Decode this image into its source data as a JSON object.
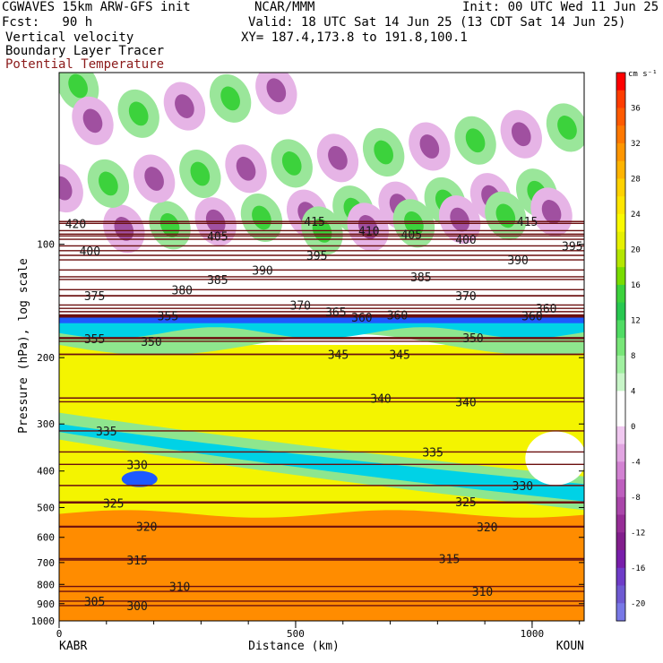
{
  "header": {
    "model": "CGWAVES 15km ARW-GFS init",
    "org": "NCAR/MMM",
    "init": "Init: 00 UTC Wed 11 Jun 25",
    "fcst": "Fcst:   90 h",
    "valid": "Valid: 18 UTC Sat 14 Jun 25 (13 CDT Sat 14 Jun 25)",
    "field1": "Vertical velocity",
    "xy": "XY= 187.4,173.8 to 191.8,100.1",
    "field2": "Boundary Layer Tracer",
    "field3": "Potential Temperature"
  },
  "colors": {
    "theta_line": "#6b0f0f",
    "blt_fill_yellow": "#f4f400",
    "blt_fill_orange": "#ff8c00",
    "blt_fill_green": "#8ee68e",
    "blt_fill_cyan": "#00d2e6",
    "blt_fill_blue": "#1e5aff"
  },
  "chart_data": {
    "type": "cross-section",
    "xlabel": "Distance (km)",
    "ylabel": "Pressure (hPa), log scale",
    "x_ticks": [
      "0",
      "500",
      "1000"
    ],
    "x_tick_values": [
      0,
      500,
      1000
    ],
    "xlim": [
      0,
      1110
    ],
    "endpoints": {
      "left": "KABR",
      "right": "KOUN"
    },
    "y_ticks": [
      "100",
      "200",
      "300",
      "400",
      "500",
      "600",
      "700",
      "800",
      "900",
      "1000"
    ],
    "y_tick_values": [
      100,
      200,
      300,
      400,
      500,
      600,
      700,
      800,
      900,
      1000
    ],
    "ylim_hpa": [
      1000,
      35
    ],
    "y_scale": "log",
    "colorbar": {
      "units": "cm s⁻¹",
      "labels": [
        "36",
        "32",
        "28",
        "24",
        "20",
        "16",
        "12",
        "8",
        "4",
        "0",
        "-4",
        "-8",
        "-12",
        "-16",
        "-20"
      ],
      "colors": [
        "#ff0000",
        "#ff3c00",
        "#ff5a00",
        "#ff7800",
        "#ff9600",
        "#ffb400",
        "#ffd200",
        "#ffe600",
        "#fafa00",
        "#e6f000",
        "#b4e600",
        "#78dc00",
        "#3cd23c",
        "#28c850",
        "#50dc64",
        "#78e678",
        "#a0f0a0",
        "#c8f5c8",
        "#ffffff",
        "#ffffff",
        "#f0c8f0",
        "#e1a5e1",
        "#d282d2",
        "#be5fbe",
        "#aa46aa",
        "#962d96",
        "#821e8c",
        "#781eaa",
        "#6e3cc8",
        "#6e5ad2",
        "#7878e6"
      ]
    },
    "theta_contours": {
      "units": "K",
      "labels": [
        {
          "v": "420",
          "x": 35,
          "p": 88
        },
        {
          "v": "415",
          "x": 540,
          "p": 87
        },
        {
          "v": "415",
          "x": 990,
          "p": 87
        },
        {
          "v": "400",
          "x": 65,
          "p": 104
        },
        {
          "v": "405",
          "x": 335,
          "p": 95
        },
        {
          "v": "410",
          "x": 655,
          "p": 92
        },
        {
          "v": "405",
          "x": 745,
          "p": 94
        },
        {
          "v": "400",
          "x": 860,
          "p": 97
        },
        {
          "v": "395",
          "x": 1085,
          "p": 101
        },
        {
          "v": "395",
          "x": 545,
          "p": 107
        },
        {
          "v": "390",
          "x": 430,
          "p": 117
        },
        {
          "v": "390",
          "x": 970,
          "p": 110
        },
        {
          "v": "385",
          "x": 335,
          "p": 124
        },
        {
          "v": "385",
          "x": 765,
          "p": 122
        },
        {
          "v": "380",
          "x": 260,
          "p": 132
        },
        {
          "v": "375",
          "x": 75,
          "p": 137
        },
        {
          "v": "370",
          "x": 510,
          "p": 145
        },
        {
          "v": "370",
          "x": 860,
          "p": 137
        },
        {
          "v": "365",
          "x": 585,
          "p": 151
        },
        {
          "v": "360",
          "x": 640,
          "p": 156
        },
        {
          "v": "360",
          "x": 715,
          "p": 154
        },
        {
          "v": "360",
          "x": 1000,
          "p": 155
        },
        {
          "v": "360",
          "x": 1030,
          "p": 148
        },
        {
          "v": "355",
          "x": 230,
          "p": 155
        },
        {
          "v": "355",
          "x": 75,
          "p": 178
        },
        {
          "v": "350",
          "x": 195,
          "p": 181
        },
        {
          "v": "350",
          "x": 875,
          "p": 177
        },
        {
          "v": "345",
          "x": 590,
          "p": 196
        },
        {
          "v": "345",
          "x": 720,
          "p": 196
        },
        {
          "v": "340",
          "x": 680,
          "p": 256
        },
        {
          "v": "340",
          "x": 860,
          "p": 262
        },
        {
          "v": "335",
          "x": 100,
          "p": 313
        },
        {
          "v": "335",
          "x": 790,
          "p": 356
        },
        {
          "v": "330",
          "x": 165,
          "p": 384
        },
        {
          "v": "330",
          "x": 980,
          "p": 437
        },
        {
          "v": "325",
          "x": 115,
          "p": 486
        },
        {
          "v": "325",
          "x": 860,
          "p": 483
        },
        {
          "v": "320",
          "x": 185,
          "p": 561
        },
        {
          "v": "320",
          "x": 905,
          "p": 563
        },
        {
          "v": "315",
          "x": 165,
          "p": 689
        },
        {
          "v": "315",
          "x": 825,
          "p": 683
        },
        {
          "v": "310",
          "x": 255,
          "p": 810
        },
        {
          "v": "310",
          "x": 895,
          "p": 835
        },
        {
          "v": "305",
          "x": 75,
          "p": 886
        },
        {
          "v": "300",
          "x": 165,
          "p": 911
        }
      ]
    }
  }
}
